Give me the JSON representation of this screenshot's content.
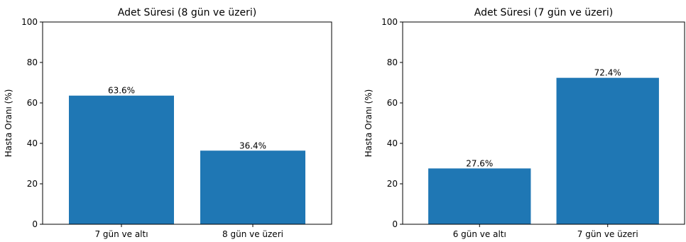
{
  "chart_data": [
    {
      "type": "bar",
      "title": "Adet Süresi (8 gün ve üzeri)",
      "xlabel": "",
      "ylabel": "Hasta Oranı (%)",
      "ylim": [
        0,
        100
      ],
      "yticks": [
        0,
        20,
        40,
        60,
        80,
        100
      ],
      "categories": [
        "7 gün ve altı",
        "8 gün ve üzeri"
      ],
      "values": [
        63.6,
        36.4
      ],
      "data_labels": [
        "63.6%",
        "36.4%"
      ],
      "bar_color": "#1f77b4",
      "grid": false
    },
    {
      "type": "bar",
      "title": "Adet Süresi (7 gün ve üzeri)",
      "xlabel": "",
      "ylabel": "Hasta Oranı (%)",
      "ylim": [
        0,
        100
      ],
      "yticks": [
        0,
        20,
        40,
        60,
        80,
        100
      ],
      "categories": [
        "6 gün ve altı",
        "7 gün ve üzeri"
      ],
      "values": [
        27.6,
        72.4
      ],
      "data_labels": [
        "27.6%",
        "72.4%"
      ],
      "bar_color": "#1f77b4",
      "grid": false
    }
  ]
}
